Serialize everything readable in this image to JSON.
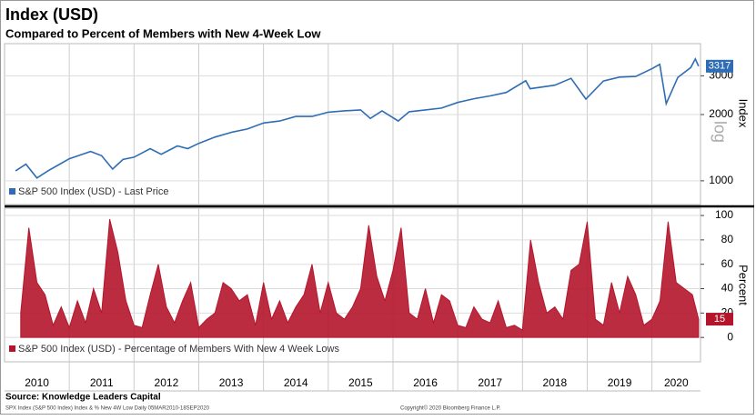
{
  "chart_data": [
    {
      "type": "line",
      "title": "Index (USD)",
      "subtitle": "Compared to Percent of Members with New 4-Week Low",
      "y_label": "Index",
      "scale_label": "log",
      "log_scale": true,
      "grid": true,
      "xlim": [
        2010,
        2020.75
      ],
      "ylim": [
        780,
        4200
      ],
      "yticks": [
        1000,
        2000,
        3000
      ],
      "x": [
        2010.17,
        2010.33,
        2010.5,
        2010.67,
        2010.83,
        2011.0,
        2011.33,
        2011.5,
        2011.67,
        2011.83,
        2012.0,
        2012.25,
        2012.42,
        2012.67,
        2012.83,
        2013.0,
        2013.25,
        2013.5,
        2013.75,
        2014.0,
        2014.25,
        2014.5,
        2014.75,
        2015.0,
        2015.25,
        2015.5,
        2015.65,
        2015.83,
        2016.08,
        2016.25,
        2016.5,
        2016.75,
        2017.0,
        2017.25,
        2017.5,
        2017.75,
        2018.05,
        2018.12,
        2018.5,
        2018.75,
        2018.98,
        2019.25,
        2019.5,
        2019.75,
        2020.0,
        2020.12,
        2020.22,
        2020.4,
        2020.6,
        2020.67,
        2020.72
      ],
      "series": [
        {
          "name": "S&P 500 Index (USD) - Last Price",
          "color": "#2e6db4",
          "values": [
            1110,
            1190,
            1030,
            1110,
            1180,
            1260,
            1360,
            1300,
            1130,
            1250,
            1280,
            1400,
            1320,
            1440,
            1400,
            1480,
            1580,
            1660,
            1720,
            1830,
            1870,
            1960,
            1960,
            2050,
            2080,
            2100,
            1920,
            2080,
            1870,
            2060,
            2100,
            2140,
            2270,
            2360,
            2430,
            2520,
            2850,
            2620,
            2720,
            2920,
            2350,
            2840,
            2960,
            2980,
            3230,
            3380,
            2240,
            2950,
            3270,
            3580,
            3317
          ]
        }
      ]
    },
    {
      "type": "area",
      "y_label": "Percent",
      "grid": true,
      "xlim": [
        2010,
        2020.75
      ],
      "ylim": [
        -20,
        106
      ],
      "yticks": [
        0,
        20,
        40,
        60,
        80,
        100
      ],
      "xticks": [
        {
          "value": 2010,
          "label": "2010"
        },
        {
          "value": 2011,
          "label": "2011"
        },
        {
          "value": 2012,
          "label": "2012"
        },
        {
          "value": 2013,
          "label": "2013"
        },
        {
          "value": 2014,
          "label": "2014"
        },
        {
          "value": 2015,
          "label": "2015"
        },
        {
          "value": 2016,
          "label": "2016"
        },
        {
          "value": 2017,
          "label": "2017"
        },
        {
          "value": 2018,
          "label": "2018"
        },
        {
          "value": 2019,
          "label": "2019"
        },
        {
          "value": 2020,
          "label": "2020"
        }
      ],
      "x": [
        2010.25,
        2010.375,
        2010.5,
        2010.625,
        2010.75,
        2010.875,
        2011.0,
        2011.125,
        2011.25,
        2011.375,
        2011.5,
        2011.625,
        2011.75,
        2011.875,
        2012.0,
        2012.125,
        2012.25,
        2012.375,
        2012.5,
        2012.625,
        2012.75,
        2012.875,
        2013.0,
        2013.125,
        2013.25,
        2013.375,
        2013.5,
        2013.625,
        2013.75,
        2013.875,
        2014.0,
        2014.125,
        2014.25,
        2014.375,
        2014.5,
        2014.625,
        2014.75,
        2014.875,
        2015.0,
        2015.125,
        2015.25,
        2015.375,
        2015.5,
        2015.625,
        2015.75,
        2015.875,
        2016.0,
        2016.125,
        2016.25,
        2016.375,
        2016.5,
        2016.625,
        2016.75,
        2016.875,
        2017.0,
        2017.125,
        2017.25,
        2017.375,
        2017.5,
        2017.625,
        2017.75,
        2017.875,
        2018.0,
        2018.125,
        2018.25,
        2018.375,
        2018.5,
        2018.625,
        2018.75,
        2018.875,
        2019.0,
        2019.125,
        2019.25,
        2019.375,
        2019.5,
        2019.625,
        2019.75,
        2019.875,
        2020.0,
        2020.125,
        2020.25,
        2020.375,
        2020.5,
        2020.625,
        2020.72
      ],
      "series": [
        {
          "name": "S&P 500 Index (USD) - Percentage of Members With New 4 Week Lows",
          "color": "#b5152b",
          "values": [
            20,
            90,
            45,
            35,
            10,
            25,
            8,
            30,
            12,
            40,
            20,
            97,
            70,
            30,
            10,
            8,
            35,
            60,
            25,
            12,
            30,
            45,
            8,
            15,
            20,
            45,
            40,
            30,
            35,
            10,
            45,
            15,
            30,
            12,
            25,
            35,
            60,
            20,
            45,
            20,
            15,
            25,
            40,
            92,
            50,
            30,
            55,
            90,
            20,
            15,
            40,
            12,
            35,
            30,
            10,
            8,
            25,
            15,
            12,
            30,
            8,
            10,
            6,
            80,
            45,
            20,
            25,
            15,
            55,
            60,
            95,
            15,
            10,
            45,
            20,
            50,
            35,
            10,
            15,
            30,
            95,
            45,
            40,
            35,
            15
          ]
        }
      ]
    }
  ],
  "source": "Source: Knowledge Leaders Capital",
  "footer": "SPX Index (S&P 500 Index) Index & % New 4W Low  Daily 05MAR2010-18SEP2020",
  "copyright": "Copyright© 2020 Bloomberg Finance L.P."
}
